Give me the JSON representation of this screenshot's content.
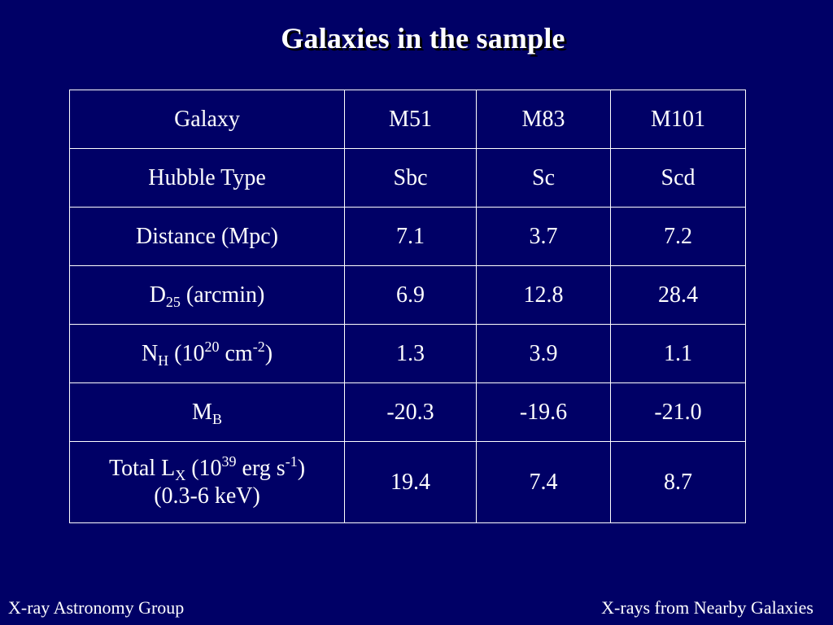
{
  "slide": {
    "title": "Galaxies in the sample"
  },
  "table": {
    "columns": [
      "Galaxy",
      "M51",
      "M83",
      "M101"
    ],
    "rows": [
      {
        "label": "Hubble Type",
        "values": [
          "Sbc",
          "Sc",
          "Scd"
        ]
      },
      {
        "label": "Distance (Mpc)",
        "values": [
          "7.1",
          "3.7",
          "7.2"
        ]
      },
      {
        "label_main": "D",
        "label_sub": "25",
        "label_rest": " (arcmin)",
        "values": [
          "6.9",
          "12.8",
          "28.4"
        ]
      },
      {
        "label_main": "N",
        "label_sub": "H",
        "label_mid": " (10",
        "label_sup1": "20",
        "label_mid2": " cm",
        "label_sup2": "-2",
        "label_end": ")",
        "values": [
          "1.3",
          "3.9",
          "1.1"
        ]
      },
      {
        "label_main": "M",
        "label_sub": "B",
        "values": [
          "-20.3",
          "-19.6",
          "-21.0"
        ]
      },
      {
        "label_main": "Total L",
        "label_sub": "X",
        "label_mid": " (10",
        "label_sup1": "39",
        "label_mid2": " erg s",
        "label_sup2": "-1",
        "label_end": ")",
        "label_line2": "(0.3-6 keV)",
        "values": [
          "19.4",
          "7.4",
          "8.7"
        ]
      }
    ]
  },
  "footer": {
    "left": "X-ray Astronomy Group",
    "right": "X-rays from Nearby Galaxies"
  }
}
